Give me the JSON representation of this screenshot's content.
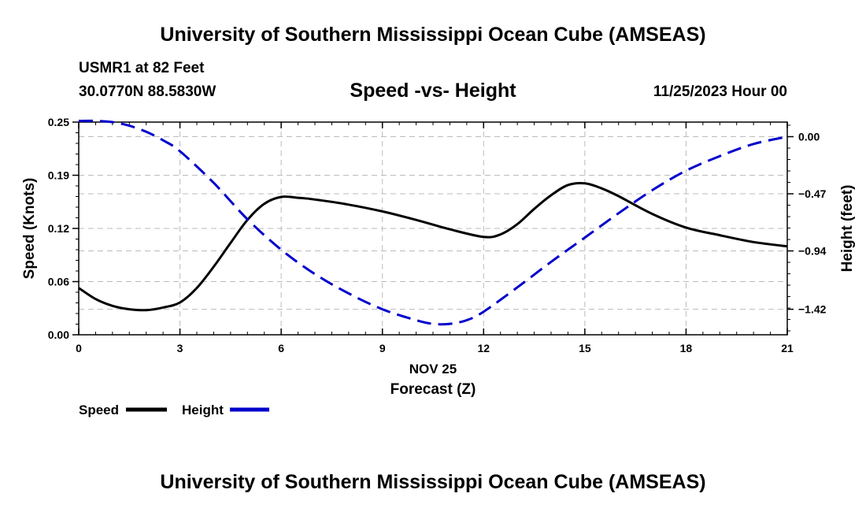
{
  "header": {
    "title": "University of Southern Mississippi Ocean Cube (AMSEAS)",
    "station": "USMR1 at 82 Feet",
    "coords": "30.0770N  88.5830W",
    "subtitle": "Speed -vs- Height",
    "datetime": "11/25/2023 Hour 00"
  },
  "footer": {
    "title": "University of Southern Mississippi Ocean Cube (AMSEAS)"
  },
  "chart_data": {
    "type": "line",
    "xlabel_date": "NOV 25",
    "xlabel": "Forecast (Z)",
    "ylabel_left": "Speed (Knots)",
    "ylabel_right": "Height (feet)",
    "x_ticks": [
      "0",
      "3",
      "6",
      "9",
      "12",
      "15",
      "18",
      "21"
    ],
    "x_tick_values": [
      0,
      3,
      6,
      9,
      12,
      15,
      18,
      21
    ],
    "xlim": [
      0,
      21
    ],
    "y_left_ticks": [
      "0.00",
      "0.06",
      "0.12",
      "0.19",
      "0.25"
    ],
    "y_left_tick_values": [
      0.0,
      0.0625,
      0.125,
      0.1875,
      0.25
    ],
    "ylim_left": [
      0,
      0.25
    ],
    "y_right_ticks": [
      "0.00",
      "−0.47",
      "−0.94",
      "−1.42"
    ],
    "y_right_tick_values": [
      0.0,
      -0.47,
      -0.94,
      -1.42
    ],
    "ylim_right": [
      -1.63,
      0.12
    ],
    "grid": true,
    "legend_position": "bottom-left",
    "series": [
      {
        "name": "Speed",
        "axis": "left",
        "color": "#000000",
        "style": "solid",
        "x": [
          0,
          0.5,
          1,
          1.5,
          2,
          2.5,
          3,
          3.5,
          4,
          4.5,
          5,
          5.5,
          6,
          6.5,
          7,
          8,
          9,
          10,
          11,
          12,
          12.5,
          13,
          13.5,
          14,
          14.5,
          15,
          15.5,
          16,
          17,
          18,
          19,
          20,
          21
        ],
        "y": [
          0.055,
          0.042,
          0.034,
          0.03,
          0.029,
          0.032,
          0.038,
          0.055,
          0.08,
          0.108,
          0.135,
          0.154,
          0.162,
          0.161,
          0.159,
          0.153,
          0.145,
          0.135,
          0.124,
          0.115,
          0.118,
          0.13,
          0.148,
          0.164,
          0.176,
          0.178,
          0.172,
          0.163,
          0.142,
          0.126,
          0.117,
          0.109,
          0.104
        ]
      },
      {
        "name": "Height",
        "axis": "right",
        "color": "#0000cc",
        "style": "dashed",
        "x": [
          0,
          0.5,
          1,
          1.5,
          2,
          2.5,
          3,
          4,
          5,
          6,
          7,
          8,
          9,
          10,
          10.5,
          11,
          11.5,
          12,
          13,
          14,
          15,
          16,
          17,
          18,
          19,
          20,
          21
        ],
        "y": [
          0.13,
          0.13,
          0.12,
          0.09,
          0.04,
          -0.03,
          -0.12,
          -0.38,
          -0.68,
          -0.93,
          -1.13,
          -1.29,
          -1.42,
          -1.51,
          -1.54,
          -1.54,
          -1.51,
          -1.44,
          -1.24,
          -1.03,
          -0.83,
          -0.63,
          -0.44,
          -0.28,
          -0.16,
          -0.06,
          0.0
        ]
      }
    ]
  }
}
